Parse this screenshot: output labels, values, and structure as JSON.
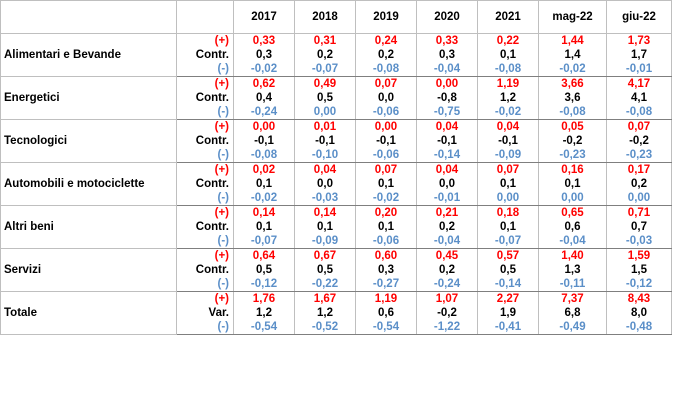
{
  "header": {
    "corner": "",
    "sublabel": "",
    "periods": [
      "2017",
      "2018",
      "2019",
      "2020",
      "2021",
      "mag-22",
      "giu-22"
    ]
  },
  "rows": [
    {
      "category": "Alimentari e Bevande",
      "plus_label": "(+)",
      "mid_label": "Contr.",
      "minus_label": "(-)",
      "plus": [
        "0,33",
        "0,31",
        "0,24",
        "0,33",
        "0,22",
        "1,44",
        "1,73"
      ],
      "mid": [
        "0,3",
        "0,2",
        "0,2",
        "0,3",
        "0,1",
        "1,4",
        "1,7"
      ],
      "minus": [
        "-0,02",
        "-0,07",
        "-0,08",
        "-0,04",
        "-0,08",
        "-0,02",
        "-0,01"
      ]
    },
    {
      "category": "Energetici",
      "plus_label": "(+)",
      "mid_label": "Contr.",
      "minus_label": "(-)",
      "plus": [
        "0,62",
        "0,49",
        "0,07",
        "0,00",
        "1,19",
        "3,66",
        "4,17"
      ],
      "mid": [
        "0,4",
        "0,5",
        "0,0",
        "-0,8",
        "1,2",
        "3,6",
        "4,1"
      ],
      "minus": [
        "-0,24",
        "0,00",
        "-0,06",
        "-0,75",
        "-0,02",
        "-0,08",
        "-0,08"
      ]
    },
    {
      "category": "Tecnologici",
      "plus_label": "(+)",
      "mid_label": "Contr.",
      "minus_label": "(-)",
      "plus": [
        "0,00",
        "0,01",
        "0,00",
        "0,04",
        "0,04",
        "0,05",
        "0,07"
      ],
      "mid": [
        "-0,1",
        "-0,1",
        "-0,1",
        "-0,1",
        "-0,1",
        "-0,2",
        "-0,2"
      ],
      "minus": [
        "-0,08",
        "-0,10",
        "-0,06",
        "-0,14",
        "-0,09",
        "-0,23",
        "-0,23"
      ]
    },
    {
      "category": "Automobili e motociclette",
      "plus_label": "(+)",
      "mid_label": "Contr.",
      "minus_label": "(-)",
      "plus": [
        "0,02",
        "0,04",
        "0,07",
        "0,04",
        "0,07",
        "0,16",
        "0,17"
      ],
      "mid": [
        "0,1",
        "0,0",
        "0,1",
        "0,0",
        "0,1",
        "0,1",
        "0,2"
      ],
      "minus": [
        "-0,02",
        "-0,03",
        "-0,02",
        "-0,01",
        "0,00",
        "0,00",
        "0,00"
      ]
    },
    {
      "category": "Altri beni",
      "plus_label": "(+)",
      "mid_label": "Contr.",
      "minus_label": "(-)",
      "plus": [
        "0,14",
        "0,14",
        "0,20",
        "0,21",
        "0,18",
        "0,65",
        "0,71"
      ],
      "mid": [
        "0,1",
        "0,1",
        "0,1",
        "0,2",
        "0,1",
        "0,6",
        "0,7"
      ],
      "minus": [
        "-0,07",
        "-0,09",
        "-0,06",
        "-0,04",
        "-0,07",
        "-0,04",
        "-0,03"
      ]
    },
    {
      "category": "Servizi",
      "plus_label": "(+)",
      "mid_label": "Contr.",
      "minus_label": "(-)",
      "plus": [
        "0,64",
        "0,67",
        "0,60",
        "0,45",
        "0,57",
        "1,40",
        "1,59"
      ],
      "mid": [
        "0,5",
        "0,5",
        "0,3",
        "0,2",
        "0,5",
        "1,3",
        "1,5"
      ],
      "minus": [
        "-0,12",
        "-0,22",
        "-0,27",
        "-0,24",
        "-0,14",
        "-0,11",
        "-0,12"
      ]
    },
    {
      "category": "Totale",
      "plus_label": "(+)",
      "mid_label": "Var.",
      "minus_label": "(-)",
      "plus": [
        "1,76",
        "1,67",
        "1,19",
        "1,07",
        "2,27",
        "7,37",
        "8,43"
      ],
      "mid": [
        "1,2",
        "1,2",
        "0,6",
        "-0,2",
        "1,9",
        "6,8",
        "8,0"
      ],
      "minus": [
        "-0,54",
        "-0,52",
        "-0,54",
        "-1,22",
        "-0,41",
        "-0,49",
        "-0,48"
      ]
    }
  ],
  "colors": {
    "plus": "#ff0000",
    "mid": "#000000",
    "minus": "#5b8fc8",
    "border": "#bfbfbf"
  }
}
